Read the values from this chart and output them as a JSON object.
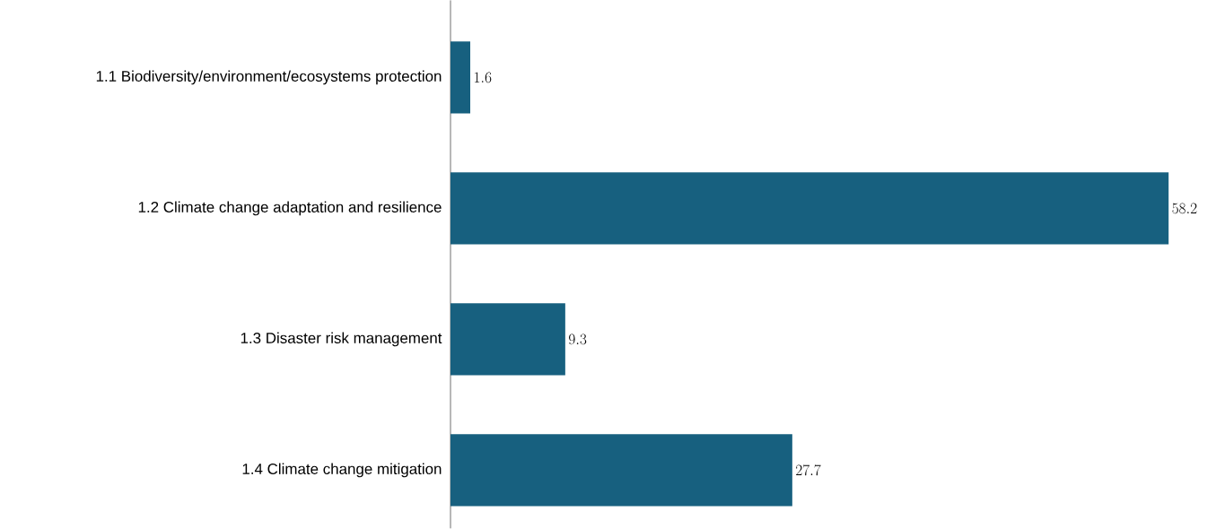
{
  "chart_data": {
    "type": "bar",
    "orientation": "horizontal",
    "categories": [
      "1.1 Biodiversity/environment/ecosystems protection",
      "1.2 Climate change adaptation and resilience",
      "1.3 Disaster risk management",
      "1.4 Climate change mitigation"
    ],
    "values": [
      1.6,
      58.2,
      9.3,
      27.7
    ],
    "color": "#17607f",
    "data_labels": true
  }
}
